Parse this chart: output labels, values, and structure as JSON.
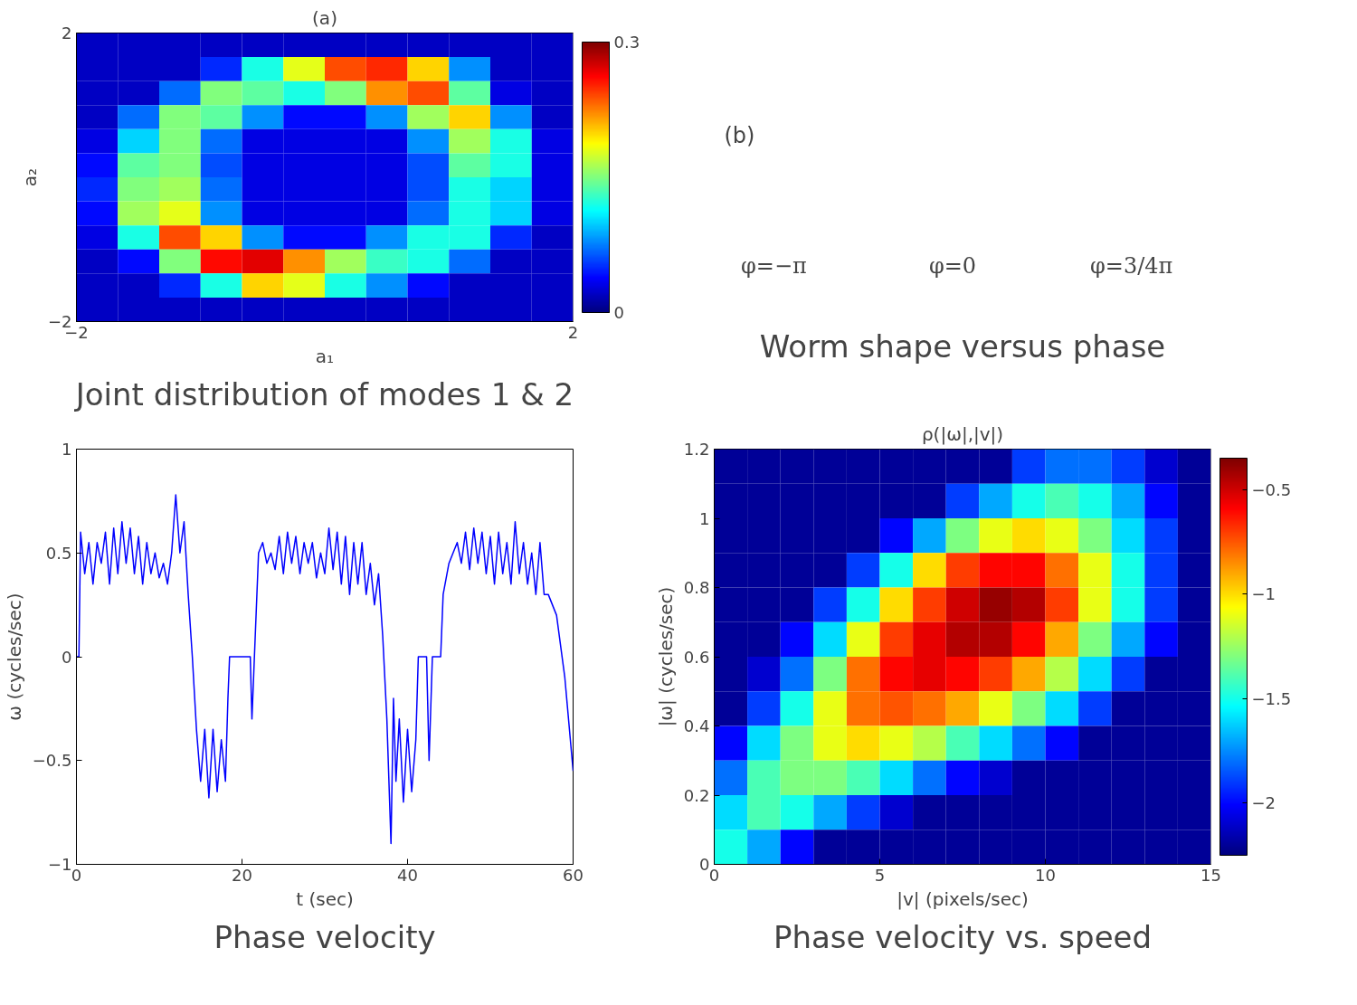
{
  "chart_data": [
    {
      "type": "heatmap",
      "title": "(a)",
      "xlabel": "a₁",
      "ylabel": "a₂",
      "xlim": [
        -2,
        2
      ],
      "ylim": [
        -2,
        2
      ],
      "xticks": [
        {
          "value": -2,
          "label": "−2"
        },
        2
      ],
      "yticks": [
        {
          "value": -2,
          "label": "−2"
        },
        2
      ],
      "clim": [
        0,
        0.3
      ],
      "cticks": [
        0,
        0.3
      ],
      "cells": [
        [
          0.02,
          0.02,
          0.02,
          0.02,
          0.02,
          0.02,
          0.02,
          0.02,
          0.02,
          0.02,
          0.02,
          0.02
        ],
        [
          0.02,
          0.02,
          0.02,
          0.05,
          0.12,
          0.18,
          0.24,
          0.25,
          0.2,
          0.08,
          0.02,
          0.02
        ],
        [
          0.02,
          0.02,
          0.07,
          0.15,
          0.14,
          0.12,
          0.15,
          0.22,
          0.24,
          0.14,
          0.03,
          0.02
        ],
        [
          0.02,
          0.07,
          0.15,
          0.14,
          0.08,
          0.04,
          0.04,
          0.08,
          0.16,
          0.2,
          0.08,
          0.02
        ],
        [
          0.03,
          0.1,
          0.15,
          0.07,
          0.03,
          0.03,
          0.03,
          0.03,
          0.08,
          0.16,
          0.12,
          0.03
        ],
        [
          0.04,
          0.14,
          0.15,
          0.06,
          0.03,
          0.03,
          0.03,
          0.03,
          0.06,
          0.14,
          0.12,
          0.03
        ],
        [
          0.05,
          0.15,
          0.16,
          0.07,
          0.03,
          0.03,
          0.03,
          0.03,
          0.06,
          0.12,
          0.1,
          0.03
        ],
        [
          0.04,
          0.16,
          0.18,
          0.08,
          0.03,
          0.03,
          0.03,
          0.03,
          0.07,
          0.12,
          0.1,
          0.03
        ],
        [
          0.03,
          0.12,
          0.24,
          0.2,
          0.08,
          0.04,
          0.04,
          0.08,
          0.12,
          0.12,
          0.05,
          0.02
        ],
        [
          0.02,
          0.04,
          0.15,
          0.26,
          0.27,
          0.22,
          0.16,
          0.13,
          0.12,
          0.07,
          0.02,
          0.02
        ],
        [
          0.02,
          0.02,
          0.05,
          0.12,
          0.2,
          0.18,
          0.12,
          0.08,
          0.04,
          0.02,
          0.02,
          0.02
        ],
        [
          0.02,
          0.02,
          0.02,
          0.02,
          0.02,
          0.02,
          0.02,
          0.02,
          0.02,
          0.02,
          0.02,
          0.02
        ]
      ],
      "annotations": [
        "Joint distribution of modes 1 & 2"
      ]
    },
    {
      "type": "other",
      "title": "(b)",
      "annotations": [
        "φ=−π",
        "φ=0",
        "φ=3/4π",
        "Worm shape versus phase"
      ]
    },
    {
      "type": "line",
      "xlabel": "t (sec)",
      "ylabel": "ω (cycles/sec)",
      "xlim": [
        0,
        60
      ],
      "ylim": [
        -1,
        1
      ],
      "xticks": [
        0,
        20,
        40,
        60
      ],
      "yticks": [
        {
          "value": -1,
          "label": "−1"
        },
        {
          "value": -0.5,
          "label": "−0.5"
        },
        0,
        0.5,
        1
      ],
      "grid": false,
      "series": [
        {
          "color": "#0000ff",
          "x": [
            0,
            0.3,
            0.5,
            1,
            1.5,
            2,
            2.5,
            3,
            3.5,
            4,
            4.5,
            5,
            5.5,
            6,
            6.5,
            7,
            7.5,
            8,
            8.5,
            9,
            9.5,
            10,
            10.5,
            11,
            11.5,
            12,
            12.5,
            13,
            13.5,
            14,
            14.5,
            15,
            15.5,
            16,
            16.5,
            17,
            17.5,
            18,
            18.3,
            18.5,
            21,
            21.2,
            21.5,
            22,
            22.5,
            23,
            23.5,
            24,
            24.5,
            25,
            25.5,
            26,
            26.5,
            27,
            27.5,
            28,
            28.5,
            29,
            29.5,
            30,
            30.5,
            31,
            31.5,
            32,
            32.5,
            33,
            33.5,
            34,
            34.5,
            35,
            35.5,
            36,
            36.5,
            37,
            37.5,
            38,
            38.3,
            38.6,
            39,
            39.5,
            40,
            40.5,
            41,
            41.3,
            42.3,
            42.6,
            43,
            44,
            44.3,
            45,
            45.5,
            46,
            46.5,
            47,
            47.5,
            48,
            48.5,
            49,
            49.5,
            50,
            50.5,
            51,
            51.5,
            52,
            52.5,
            53,
            53.5,
            54,
            54.5,
            55,
            55.5,
            56,
            56.5,
            57,
            58,
            59,
            60
          ],
          "values": [
            0,
            0,
            0.6,
            0.4,
            0.55,
            0.35,
            0.55,
            0.45,
            0.6,
            0.35,
            0.62,
            0.4,
            0.65,
            0.45,
            0.62,
            0.4,
            0.58,
            0.35,
            0.55,
            0.4,
            0.5,
            0.38,
            0.45,
            0.35,
            0.5,
            0.78,
            0.5,
            0.65,
            0.3,
            0,
            -0.35,
            -0.6,
            -0.35,
            -0.68,
            -0.35,
            -0.65,
            -0.4,
            -0.6,
            -0.2,
            0,
            0,
            -0.3,
            0,
            0.5,
            0.55,
            0.45,
            0.5,
            0.42,
            0.58,
            0.4,
            0.6,
            0.45,
            0.58,
            0.4,
            0.55,
            0.45,
            0.55,
            0.38,
            0.5,
            0.4,
            0.62,
            0.42,
            0.6,
            0.35,
            0.58,
            0.3,
            0.55,
            0.35,
            0.55,
            0.3,
            0.45,
            0.25,
            0.4,
            0.1,
            -0.3,
            -0.9,
            -0.2,
            -0.6,
            -0.3,
            -0.7,
            -0.35,
            -0.65,
            -0.4,
            0,
            0,
            -0.5,
            0,
            0,
            0.3,
            0.45,
            0.5,
            0.55,
            0.45,
            0.6,
            0.42,
            0.62,
            0.45,
            0.6,
            0.4,
            0.58,
            0.35,
            0.6,
            0.4,
            0.55,
            0.35,
            0.65,
            0.4,
            0.55,
            0.35,
            0.5,
            0.3,
            0.55,
            0.3,
            0.3,
            0.2,
            -0.1,
            -0.55
          ]
        }
      ],
      "annotations": [
        "Phase velocity"
      ]
    },
    {
      "type": "heatmap",
      "title": "ρ(|ω|,|v|)",
      "xlabel": "|v| (pixels/sec)",
      "ylabel": "|ω| (cycles/sec)",
      "xlim": [
        0,
        15
      ],
      "ylim": [
        0,
        1.2
      ],
      "xticks": [
        0,
        5,
        10,
        15
      ],
      "yticks": [
        0,
        0.2,
        0.4,
        0.6,
        0.8,
        1,
        1.2
      ],
      "clim": [
        -2.25,
        -0.35
      ],
      "cticks": [
        {
          "value": -2,
          "label": "−2"
        },
        {
          "value": -1.5,
          "label": "−1.5"
        },
        {
          "value": -1,
          "label": "−1"
        },
        {
          "value": -0.5,
          "label": "−0.5"
        }
      ],
      "cells": [
        [
          -2.2,
          -2.2,
          -2.2,
          -2.2,
          -2.2,
          -2.2,
          -2.2,
          -2.2,
          -2.2,
          -1.9,
          -1.8,
          -1.8,
          -1.9,
          -2.1,
          -2.2
        ],
        [
          -2.2,
          -2.2,
          -2.2,
          -2.2,
          -2.2,
          -2.2,
          -2.2,
          -1.9,
          -1.7,
          -1.5,
          -1.4,
          -1.5,
          -1.7,
          -2.0,
          -2.2
        ],
        [
          -2.2,
          -2.2,
          -2.2,
          -2.2,
          -2.2,
          -2.0,
          -1.7,
          -1.3,
          -1.1,
          -1.0,
          -1.1,
          -1.3,
          -1.6,
          -1.9,
          -2.2
        ],
        [
          -2.2,
          -2.2,
          -2.2,
          -2.2,
          -1.9,
          -1.5,
          -1.0,
          -0.7,
          -0.6,
          -0.6,
          -0.8,
          -1.1,
          -1.5,
          -1.9,
          -2.2
        ],
        [
          -2.2,
          -2.2,
          -2.2,
          -1.9,
          -1.5,
          -1.0,
          -0.7,
          -0.5,
          -0.4,
          -0.45,
          -0.7,
          -1.1,
          -1.5,
          -1.9,
          -2.2
        ],
        [
          -2.2,
          -2.2,
          -2.0,
          -1.6,
          -1.1,
          -0.7,
          -0.55,
          -0.45,
          -0.45,
          -0.6,
          -0.9,
          -1.3,
          -1.7,
          -2.0,
          -2.2
        ],
        [
          -2.2,
          -2.1,
          -1.8,
          -1.3,
          -0.8,
          -0.6,
          -0.55,
          -0.6,
          -0.7,
          -0.9,
          -1.2,
          -1.6,
          -1.9,
          -2.2,
          -2.2
        ],
        [
          -2.2,
          -1.9,
          -1.5,
          -1.1,
          -0.8,
          -0.75,
          -0.8,
          -0.9,
          -1.1,
          -1.3,
          -1.6,
          -1.9,
          -2.2,
          -2.2,
          -2.2
        ],
        [
          -2.0,
          -1.6,
          -1.3,
          -1.1,
          -1.0,
          -1.1,
          -1.2,
          -1.4,
          -1.6,
          -1.8,
          -2.0,
          -2.2,
          -2.2,
          -2.2,
          -2.2
        ],
        [
          -1.8,
          -1.4,
          -1.3,
          -1.3,
          -1.4,
          -1.6,
          -1.8,
          -2.0,
          -2.1,
          -2.2,
          -2.2,
          -2.2,
          -2.2,
          -2.2,
          -2.2
        ],
        [
          -1.6,
          -1.4,
          -1.5,
          -1.7,
          -1.9,
          -2.1,
          -2.2,
          -2.2,
          -2.2,
          -2.2,
          -2.2,
          -2.2,
          -2.2,
          -2.2,
          -2.2
        ],
        [
          -1.5,
          -1.7,
          -2.0,
          -2.2,
          -2.2,
          -2.2,
          -2.2,
          -2.2,
          -2.2,
          -2.2,
          -2.2,
          -2.2,
          -2.2,
          -2.2,
          -2.2
        ]
      ],
      "annotations": [
        "Phase velocity vs. speed"
      ]
    }
  ]
}
